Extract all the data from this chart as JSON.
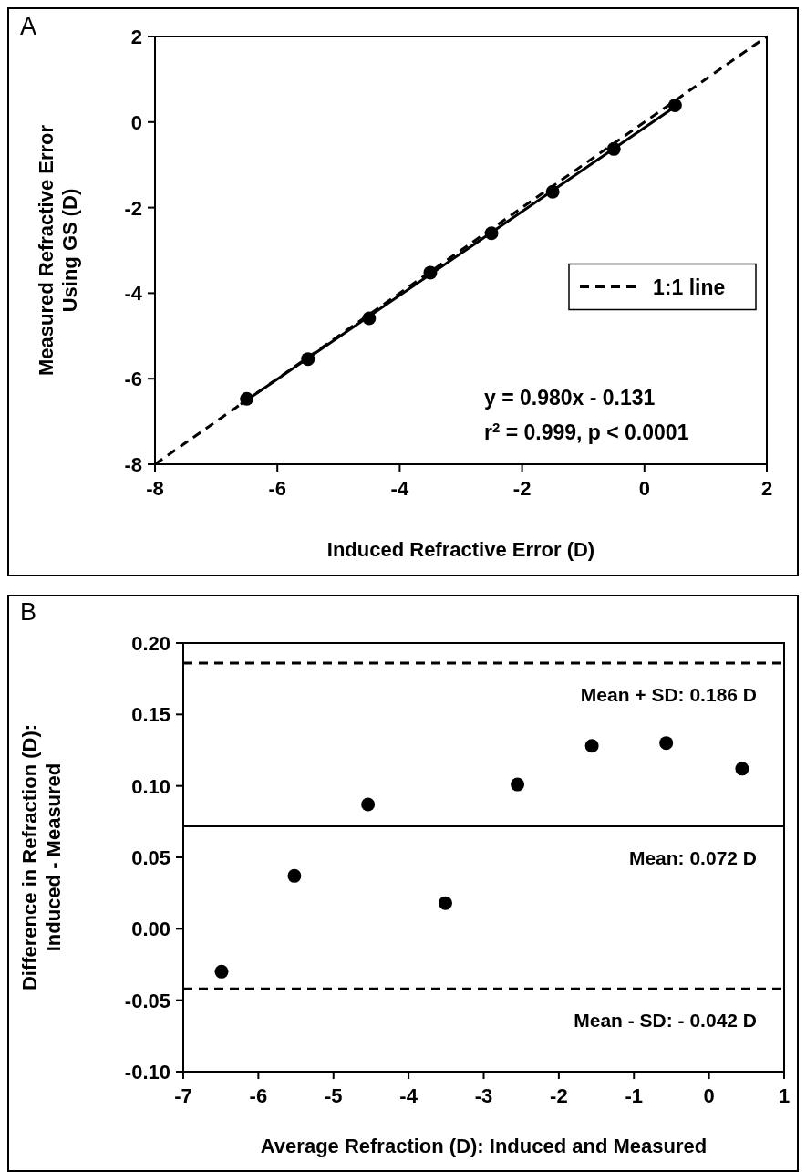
{
  "chart_data": [
    {
      "type": "scatter",
      "title": "A",
      "xlabel": "Induced Refractive Error (D)",
      "ylabel": "Measured Refractive Error\nUsing GS (D)",
      "xlim": [
        -8,
        2
      ],
      "xticks": [
        -8,
        -6,
        -4,
        -2,
        0,
        2
      ],
      "ylim": [
        -8,
        2
      ],
      "yticks": [
        -8,
        -6,
        -4,
        -2,
        0,
        2
      ],
      "grid": false,
      "legend": "right",
      "marker": "circle",
      "series": [
        {
          "type": "scatter",
          "color": "#000000",
          "x": [
            -6.5,
            -5.5,
            -4.5,
            -3.5,
            -2.5,
            -1.5,
            -0.5,
            0.5
          ],
          "values": [
            -6.47,
            -5.54,
            -4.59,
            -3.52,
            -2.6,
            -1.63,
            -0.63,
            0.39
          ]
        },
        {
          "type": "line",
          "color": "#000000",
          "line_style": "solid",
          "marker": "none",
          "x": [
            -6.6,
            0.5
          ],
          "values": [
            -6.6,
            0.36
          ]
        },
        {
          "type": "line",
          "name": "1:1 line",
          "color": "#000000",
          "line_style": "dashed",
          "marker": "none",
          "x": [
            -8,
            2
          ],
          "values": [
            -8,
            2
          ]
        }
      ],
      "annotations": [
        "y = 0.980x - 0.131",
        "r$^{2}$ = 0.999, p < 0.0001"
      ]
    },
    {
      "type": "scatter",
      "title": "B",
      "xlabel": "Average Refraction (D): Induced and Measured",
      "ylabel": "Difference in Refraction (D):\nInduced - Measured",
      "xlim": [
        -7,
        1
      ],
      "xticks": [
        -7,
        -6,
        -5,
        -4,
        -3,
        -2,
        -1,
        0,
        1
      ],
      "ylim": [
        -0.1,
        0.2
      ],
      "yticks": [
        {
          "value": -0.1,
          "label": "-0.10"
        },
        {
          "value": -0.05,
          "label": "-0.05"
        },
        {
          "value": 0,
          "label": "0.00"
        },
        {
          "value": 0.05,
          "label": "0.05"
        },
        {
          "value": 0.1,
          "label": "0.10"
        },
        {
          "value": 0.15,
          "label": "0.15"
        },
        {
          "value": 0.2,
          "label": "0.20"
        }
      ],
      "grid": false,
      "marker": "circle",
      "series": [
        {
          "type": "scatter",
          "color": "#000000",
          "x": [
            -6.49,
            -5.52,
            -4.54,
            -3.51,
            -2.55,
            -1.56,
            -0.57,
            0.44
          ],
          "values": [
            -0.03,
            0.037,
            0.087,
            0.018,
            0.101,
            0.128,
            0.13,
            0.112
          ]
        }
      ],
      "ref_lines": [
        {
          "axis": "y",
          "value": 0.186,
          "label": "Mean + SD: 0.186 D",
          "line_style": "dashed",
          "color": "#000000"
        },
        {
          "axis": "y",
          "value": 0.072,
          "label": "Mean: 0.072 D",
          "line_style": "solid",
          "color": "#000000"
        },
        {
          "axis": "y",
          "value": -0.042,
          "label": "Mean - SD: - 0.042 D",
          "line_style": "dashed",
          "color": "#000000"
        }
      ]
    }
  ]
}
